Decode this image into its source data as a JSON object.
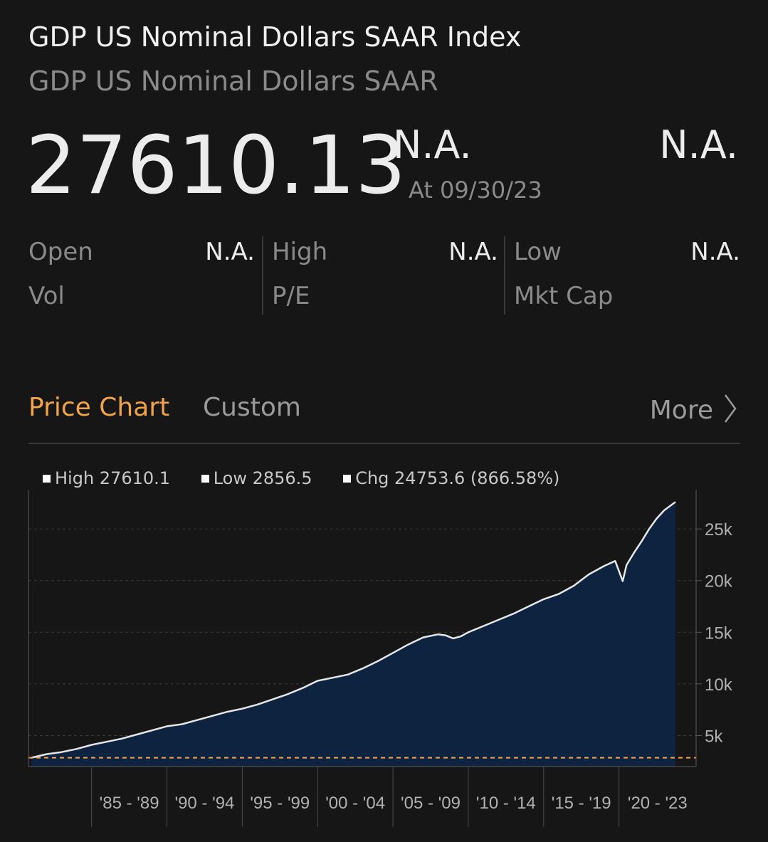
{
  "header": {
    "title": "GDP US Nominal Dollars SAAR Index",
    "subtitle": "GDP US Nominal Dollars SAAR"
  },
  "quote": {
    "price": "27610.13",
    "change": "N.A.",
    "as_of": "At 09/30/23",
    "change_pct": "N.A."
  },
  "stats": {
    "open_label": "Open",
    "open_value": "N.A.",
    "high_label": "High",
    "high_value": "N.A.",
    "low_label": "Low",
    "low_value": "N.A.",
    "vol_label": "Vol",
    "pe_label": "P/E",
    "mktcap_label": "Mkt Cap"
  },
  "tabs": {
    "price_chart": "Price Chart",
    "custom": "Custom",
    "more": "More"
  },
  "colors": {
    "accent": "#f3a44b",
    "area_fill": "#0d2340",
    "line": "#e6e6e6",
    "grid": "#3a3a3a",
    "reference_line": "#f3a44b"
  },
  "chart_data": {
    "type": "area",
    "legend": {
      "high": "High 27610.1",
      "low": "Low 2856.5",
      "chg": "Chg 24753.6 (866.58%)"
    },
    "x": [
      1981.0,
      1982.0,
      1983.0,
      1984.0,
      1985.0,
      1986.0,
      1987.0,
      1988.0,
      1989.0,
      1990.0,
      1991.0,
      1992.0,
      1993.0,
      1994.0,
      1995.0,
      1996.0,
      1997.0,
      1998.0,
      1999.0,
      2000.0,
      2001.0,
      2002.0,
      2003.0,
      2004.0,
      2005.0,
      2006.0,
      2007.0,
      2008.0,
      2008.5,
      2009.0,
      2009.5,
      2010.0,
      2011.0,
      2012.0,
      2013.0,
      2014.0,
      2015.0,
      2016.0,
      2017.0,
      2018.0,
      2019.0,
      2019.75,
      2020.25,
      2020.5,
      2021.0,
      2021.5,
      2022.0,
      2022.5,
      2023.0,
      2023.75
    ],
    "y": [
      2856.5,
      3200,
      3400,
      3700,
      4100,
      4400,
      4700,
      5100,
      5500,
      5900,
      6100,
      6500,
      6900,
      7300,
      7600,
      8000,
      8500,
      9000,
      9600,
      10300,
      10600,
      10900,
      11500,
      12200,
      13000,
      13800,
      14500,
      14800,
      14700,
      14400,
      14600,
      15000,
      15600,
      16200,
      16800,
      17500,
      18200,
      18700,
      19500,
      20600,
      21400,
      21900,
      19950,
      21500,
      22700,
      23800,
      25000,
      26000,
      26800,
      27610.1
    ],
    "ylim": [
      2000,
      28800
    ],
    "yticks": [
      {
        "v": 25000,
        "label": "25k"
      },
      {
        "v": 20000,
        "label": "20k"
      },
      {
        "v": 15000,
        "label": "15k"
      },
      {
        "v": 10000,
        "label": "10k"
      },
      {
        "v": 5000,
        "label": "5k"
      }
    ],
    "x_periods": [
      {
        "start": 1985,
        "label": "'85 - '89"
      },
      {
        "start": 1990,
        "label": "'90 - '94"
      },
      {
        "start": 1995,
        "label": "'95 - '99"
      },
      {
        "start": 2000,
        "label": "'00 - '04"
      },
      {
        "start": 2005,
        "label": "'05 - '09"
      },
      {
        "start": 2010,
        "label": "'10 - '14"
      },
      {
        "start": 2015,
        "label": "'15 - '19"
      },
      {
        "start": 2020,
        "label": "'20 - '23"
      }
    ],
    "low_reference": 2856.5,
    "grid": true
  }
}
